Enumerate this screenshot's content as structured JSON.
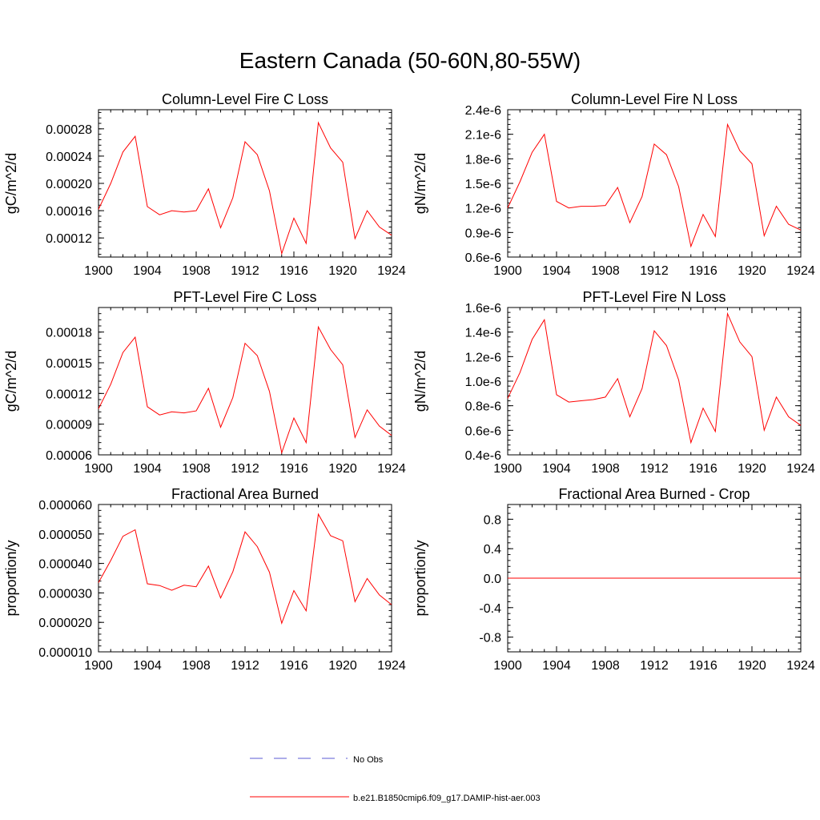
{
  "title": "Eastern Canada (50-60N,80-55W)",
  "colors": {
    "model_line": "#ff0000",
    "obs_line": "#5b5bd6",
    "axis": "#000000"
  },
  "legend": {
    "obs_label": "No Obs",
    "model_label": "b.e21.B1850cmip6.f09_g17.DAMIP-hist-aer.003"
  },
  "chart_data": [
    {
      "type": "line",
      "title": "Column-Level Fire C Loss",
      "ylabel": "gC/m^2/d",
      "x": [
        1900,
        1901,
        1902,
        1903,
        1904,
        1905,
        1906,
        1907,
        1908,
        1909,
        1910,
        1911,
        1912,
        1913,
        1914,
        1915,
        1916,
        1917,
        1918,
        1919,
        1920,
        1921,
        1922,
        1923,
        1924
      ],
      "xlim": [
        1900,
        1924
      ],
      "xticks": [
        1900,
        1904,
        1908,
        1912,
        1916,
        1920,
        1924
      ],
      "xtick_labels": [
        "1900",
        "1904",
        "1908",
        "1912",
        "1916",
        "1920",
        "1924"
      ],
      "ylim": [
        9.2e-05,
        0.000308
      ],
      "yticks": [
        0.00012,
        0.00016,
        0.0002,
        0.00024,
        0.00028
      ],
      "ytick_labels": [
        "0.00012",
        "0.00016",
        "0.00020",
        "0.00024",
        "0.00028"
      ],
      "series": [
        {
          "values": [
            0.000162,
            0.0002,
            0.000246,
            0.000269,
            0.000166,
            0.000154,
            0.00016,
            0.000158,
            0.00016,
            0.000192,
            0.000135,
            0.000179,
            0.000261,
            0.000242,
            0.000189,
            9.7e-05,
            0.000149,
            0.000112,
            0.000289,
            0.000252,
            0.000231,
            0.000119,
            0.00016,
            0.000136,
            0.000124
          ]
        }
      ]
    },
    {
      "type": "line",
      "title": "Column-Level Fire N Loss",
      "ylabel": "gN/m^2/d",
      "x": [
        1900,
        1901,
        1902,
        1903,
        1904,
        1905,
        1906,
        1907,
        1908,
        1909,
        1910,
        1911,
        1912,
        1913,
        1914,
        1915,
        1916,
        1917,
        1918,
        1919,
        1920,
        1921,
        1922,
        1923,
        1924
      ],
      "xlim": [
        1900,
        1924
      ],
      "xticks": [
        1900,
        1904,
        1908,
        1912,
        1916,
        1920,
        1924
      ],
      "xtick_labels": [
        "1900",
        "1904",
        "1908",
        "1912",
        "1916",
        "1920",
        "1924"
      ],
      "ylim": [
        6e-07,
        2.4e-06
      ],
      "yticks": [
        6e-07,
        9e-07,
        1.2e-06,
        1.5e-06,
        1.8e-06,
        2.1e-06,
        2.4e-06
      ],
      "ytick_labels": [
        "0.6e-6",
        "0.9e-6",
        "1.2e-6",
        "1.5e-6",
        "1.8e-6",
        "2.1e-6",
        "2.4e-6"
      ],
      "series": [
        {
          "values": [
            1.2e-06,
            1.52e-06,
            1.88e-06,
            2.1e-06,
            1.28e-06,
            1.2e-06,
            1.22e-06,
            1.22e-06,
            1.23e-06,
            1.45e-06,
            1.02e-06,
            1.34e-06,
            1.98e-06,
            1.85e-06,
            1.46e-06,
            7.3e-07,
            1.12e-06,
            8.5e-07,
            2.22e-06,
            1.9e-06,
            1.74e-06,
            8.6e-07,
            1.22e-06,
            1e-06,
            9.3e-07
          ]
        }
      ]
    },
    {
      "type": "line",
      "title": "PFT-Level Fire C Loss",
      "ylabel": "gC/m^2/d",
      "x": [
        1900,
        1901,
        1902,
        1903,
        1904,
        1905,
        1906,
        1907,
        1908,
        1909,
        1910,
        1911,
        1912,
        1913,
        1914,
        1915,
        1916,
        1917,
        1918,
        1919,
        1920,
        1921,
        1922,
        1923,
        1924
      ],
      "xlim": [
        1900,
        1924
      ],
      "xticks": [
        1900,
        1904,
        1908,
        1912,
        1916,
        1920,
        1924
      ],
      "xtick_labels": [
        "1900",
        "1904",
        "1908",
        "1912",
        "1916",
        "1920",
        "1924"
      ],
      "ylim": [
        6e-05,
        0.000204
      ],
      "yticks": [
        6e-05,
        9e-05,
        0.00012,
        0.00015,
        0.00018
      ],
      "ytick_labels": [
        "0.00006",
        "0.00009",
        "0.00012",
        "0.00015",
        "0.00018"
      ],
      "series": [
        {
          "values": [
            0.000105,
            0.000129,
            0.00016,
            0.000175,
            0.000107,
            9.9e-05,
            0.000102,
            0.000101,
            0.000103,
            0.000125,
            8.7e-05,
            0.000116,
            0.000169,
            0.000157,
            0.000122,
            6.2e-05,
            9.6e-05,
            7.2e-05,
            0.000185,
            0.000163,
            0.000148,
            7.7e-05,
            0.000104,
            8.8e-05,
            7.9e-05
          ]
        }
      ]
    },
    {
      "type": "line",
      "title": "PFT-Level Fire N Loss",
      "ylabel": "gN/m^2/d",
      "x": [
        1900,
        1901,
        1902,
        1903,
        1904,
        1905,
        1906,
        1907,
        1908,
        1909,
        1910,
        1911,
        1912,
        1913,
        1914,
        1915,
        1916,
        1917,
        1918,
        1919,
        1920,
        1921,
        1922,
        1923,
        1924
      ],
      "xlim": [
        1900,
        1924
      ],
      "xticks": [
        1900,
        1904,
        1908,
        1912,
        1916,
        1920,
        1924
      ],
      "xtick_labels": [
        "1900",
        "1904",
        "1908",
        "1912",
        "1916",
        "1920",
        "1924"
      ],
      "ylim": [
        4e-07,
        1.6e-06
      ],
      "yticks": [
        4e-07,
        6e-07,
        8e-07,
        1e-06,
        1.2e-06,
        1.4e-06,
        1.6e-06
      ],
      "ytick_labels": [
        "0.4e-6",
        "0.6e-6",
        "0.8e-6",
        "1.0e-6",
        "1.2e-6",
        "1.4e-6",
        "1.6e-6"
      ],
      "series": [
        {
          "values": [
            8.6e-07,
            1.07e-06,
            1.34e-06,
            1.5e-06,
            8.9e-07,
            8.3e-07,
            8.4e-07,
            8.5e-07,
            8.7e-07,
            1.02e-06,
            7.1e-07,
            9.4e-07,
            1.41e-06,
            1.29e-06,
            1.01e-06,
            5e-07,
            7.8e-07,
            5.9e-07,
            1.55e-06,
            1.32e-06,
            1.2e-06,
            6e-07,
            8.7e-07,
            7.1e-07,
            6.4e-07
          ]
        }
      ]
    },
    {
      "type": "line",
      "title": "Fractional Area Burned",
      "ylabel": "proportion/y",
      "x": [
        1900,
        1901,
        1902,
        1903,
        1904,
        1905,
        1906,
        1907,
        1908,
        1909,
        1910,
        1911,
        1912,
        1913,
        1914,
        1915,
        1916,
        1917,
        1918,
        1919,
        1920,
        1921,
        1922,
        1923,
        1924
      ],
      "xlim": [
        1900,
        1924
      ],
      "xticks": [
        1900,
        1904,
        1908,
        1912,
        1916,
        1920,
        1924
      ],
      "xtick_labels": [
        "1900",
        "1904",
        "1908",
        "1912",
        "1916",
        "1920",
        "1924"
      ],
      "ylim": [
        1e-05,
        6e-05
      ],
      "yticks": [
        1e-05,
        2e-05,
        3e-05,
        4e-05,
        5e-05,
        6e-05
      ],
      "ytick_labels": [
        "0.000010",
        "0.000020",
        "0.000030",
        "0.000040",
        "0.000050",
        "0.000060"
      ],
      "series": [
        {
          "values": [
            3.35e-05,
            4.1e-05,
            4.92e-05,
            5.14e-05,
            3.31e-05,
            3.25e-05,
            3.09e-05,
            3.26e-05,
            3.21e-05,
            3.91e-05,
            2.83e-05,
            3.72e-05,
            5.07e-05,
            4.57e-05,
            3.7e-05,
            1.97e-05,
            3.08e-05,
            2.39e-05,
            5.67e-05,
            4.94e-05,
            4.77e-05,
            2.7e-05,
            3.49e-05,
            2.93e-05,
            2.6e-05
          ]
        }
      ]
    },
    {
      "type": "line",
      "title": "Fractional Area Burned - Crop",
      "ylabel": "proportion/y",
      "x": [
        1900,
        1901,
        1902,
        1903,
        1904,
        1905,
        1906,
        1907,
        1908,
        1909,
        1910,
        1911,
        1912,
        1913,
        1914,
        1915,
        1916,
        1917,
        1918,
        1919,
        1920,
        1921,
        1922,
        1923,
        1924
      ],
      "xlim": [
        1900,
        1924
      ],
      "xticks": [
        1900,
        1904,
        1908,
        1912,
        1916,
        1920,
        1924
      ],
      "xtick_labels": [
        "1900",
        "1904",
        "1908",
        "1912",
        "1916",
        "1920",
        "1924"
      ],
      "ylim": [
        -1.0,
        1.0
      ],
      "yticks": [
        -0.8,
        -0.4,
        0.0,
        0.4,
        0.8
      ],
      "ytick_labels": [
        "-0.8",
        "-0.4",
        "0.0",
        "0.4",
        "0.8"
      ],
      "series": [
        {
          "values": [
            0,
            0,
            0,
            0,
            0,
            0,
            0,
            0,
            0,
            0,
            0,
            0,
            0,
            0,
            0,
            0,
            0,
            0,
            0,
            0,
            0,
            0,
            0,
            0,
            0
          ]
        }
      ]
    }
  ]
}
